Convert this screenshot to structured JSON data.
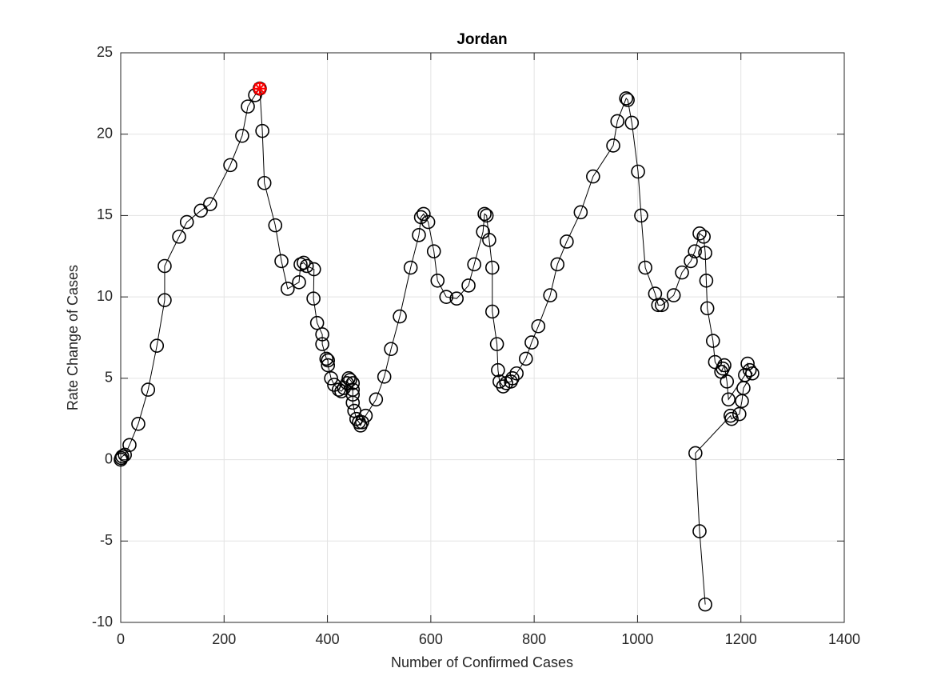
{
  "chart_data": {
    "type": "line",
    "title": "Jordan",
    "x_label": "Number of Confirmed Cases",
    "y_label": "Rate Change of Cases",
    "xlim": [
      0,
      1400
    ],
    "ylim": [
      -10,
      25
    ],
    "xticks": [
      0,
      200,
      400,
      600,
      800,
      1000,
      1200,
      1400
    ],
    "yticks": [
      -10,
      -5,
      0,
      5,
      10,
      15,
      20,
      25
    ],
    "grid": true,
    "legend": false,
    "series": [
      {
        "color": "#000000",
        "marker": "circle",
        "x": [
          0,
          1,
          3,
          8,
          17,
          34,
          53,
          70,
          85,
          85,
          113,
          128,
          155,
          173,
          212,
          235,
          246,
          260,
          269,
          274,
          278,
          299,
          311,
          323,
          345,
          348,
          354,
          360,
          374,
          373,
          380,
          390,
          390,
          398,
          401,
          401,
          407,
          413,
          422,
          427,
          432,
          438,
          441,
          444,
          449,
          449,
          449,
          449,
          452,
          456,
          461,
          464,
          467,
          474,
          494,
          510,
          523,
          540,
          561,
          577,
          581,
          586,
          595,
          606,
          613,
          630,
          650,
          673,
          684,
          701,
          704,
          708,
          713,
          719,
          719,
          728,
          730,
          733,
          740,
          746,
          755,
          758,
          766,
          784,
          795,
          808,
          831,
          845,
          863,
          890,
          914,
          953,
          961,
          978,
          981,
          989,
          1001,
          1007,
          1015,
          1034,
          1040,
          1047,
          1070,
          1086,
          1103,
          1111,
          1120,
          1128,
          1131,
          1133,
          1135,
          1146,
          1150,
          1162,
          1165,
          1168,
          1173,
          1176,
          1208,
          1213,
          1217,
          1222,
          1205,
          1202,
          1197,
          1182,
          1180,
          1112,
          1120,
          1131
        ],
        "values": [
          0,
          0.1,
          0.2,
          0.3,
          0.9,
          2.2,
          4.3,
          7.0,
          9.8,
          11.9,
          13.7,
          14.6,
          15.3,
          15.7,
          18.1,
          19.9,
          21.7,
          22.4,
          22.8,
          20.2,
          17.0,
          14.4,
          12.2,
          10.5,
          10.9,
          12.0,
          12.1,
          11.9,
          11.7,
          9.9,
          8.4,
          7.7,
          7.1,
          6.2,
          6.1,
          5.8,
          5.0,
          4.6,
          4.3,
          4.2,
          4.4,
          4.7,
          5.0,
          4.9,
          4.7,
          4.3,
          4.0,
          3.5,
          3.0,
          2.5,
          2.3,
          2.1,
          2.3,
          2.7,
          3.7,
          5.1,
          6.8,
          8.8,
          11.8,
          13.8,
          14.9,
          15.1,
          14.6,
          12.8,
          11.0,
          10.0,
          9.9,
          10.7,
          12.0,
          14.0,
          15.1,
          15.0,
          13.5,
          11.8,
          9.1,
          7.1,
          5.5,
          4.8,
          4.5,
          4.7,
          4.8,
          5.0,
          5.3,
          6.2,
          7.2,
          8.2,
          10.1,
          12.0,
          13.4,
          15.2,
          17.4,
          19.3,
          20.8,
          22.2,
          22.1,
          20.7,
          17.7,
          15.0,
          11.8,
          10.2,
          9.5,
          9.5,
          10.1,
          11.5,
          12.2,
          12.8,
          13.9,
          13.7,
          12.7,
          11.0,
          9.3,
          7.3,
          6.0,
          5.4,
          5.6,
          5.8,
          4.8,
          3.7,
          5.2,
          5.9,
          5.5,
          5.3,
          4.4,
          3.6,
          2.8,
          2.5,
          2.7,
          0.4,
          -4.4,
          -8.9
        ]
      },
      {
        "color": "#ff0000",
        "marker": "star",
        "x": [
          269
        ],
        "values": [
          22.8
        ]
      }
    ]
  }
}
